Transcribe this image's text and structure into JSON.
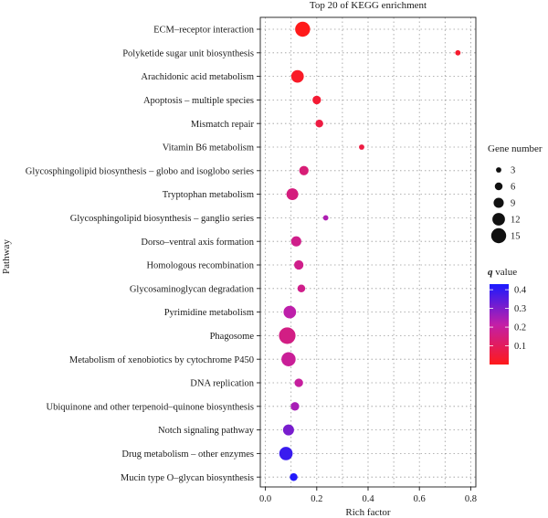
{
  "chart_data": {
    "type": "scatter",
    "title": "Top 20 of KEGG enrichment",
    "xlabel": "Rich factor",
    "ylabel": "Pathway",
    "xlim": [
      -0.02,
      0.82
    ],
    "xticks": [
      "0.0",
      "0.2",
      "0.4",
      "0.6",
      "0.8"
    ],
    "grid": true,
    "points": [
      {
        "pathway": "ECM–receptor interaction",
        "rich_factor": 0.145,
        "gene_number": 15,
        "q_value": 0.0
      },
      {
        "pathway": "Polyketide sugar unit biosynthesis",
        "rich_factor": 0.75,
        "gene_number": 3,
        "q_value": 0.03
      },
      {
        "pathway": "Arachidonic acid metabolism",
        "rich_factor": 0.125,
        "gene_number": 12,
        "q_value": 0.02
      },
      {
        "pathway": "Apoptosis – multiple species",
        "rich_factor": 0.2,
        "gene_number": 7,
        "q_value": 0.04
      },
      {
        "pathway": "Mismatch repair",
        "rich_factor": 0.21,
        "gene_number": 6,
        "q_value": 0.06
      },
      {
        "pathway": "Vitamin B6 metabolism",
        "rich_factor": 0.375,
        "gene_number": 3,
        "q_value": 0.06
      },
      {
        "pathway": "Glycosphingolipid biosynthesis – globo and isoglobo series",
        "rich_factor": 0.15,
        "gene_number": 8,
        "q_value": 0.14
      },
      {
        "pathway": "Tryptophan metabolism",
        "rich_factor": 0.105,
        "gene_number": 11,
        "q_value": 0.15
      },
      {
        "pathway": "Glycosphingolipid biosynthesis – ganglio series",
        "rich_factor": 0.235,
        "gene_number": 3,
        "q_value": 0.24
      },
      {
        "pathway": "Dorso–ventral axis formation",
        "rich_factor": 0.12,
        "gene_number": 9,
        "q_value": 0.17
      },
      {
        "pathway": "Homologous recombination",
        "rich_factor": 0.13,
        "gene_number": 8,
        "q_value": 0.17
      },
      {
        "pathway": "Glycosaminoglycan degradation",
        "rich_factor": 0.14,
        "gene_number": 6,
        "q_value": 0.17
      },
      {
        "pathway": "Pyrimidine metabolism",
        "rich_factor": 0.095,
        "gene_number": 12,
        "q_value": 0.22
      },
      {
        "pathway": "Phagosome",
        "rich_factor": 0.085,
        "gene_number": 17,
        "q_value": 0.16
      },
      {
        "pathway": "Metabolism of xenobiotics by cytochrome P450",
        "rich_factor": 0.09,
        "gene_number": 14,
        "q_value": 0.19
      },
      {
        "pathway": "DNA replication",
        "rich_factor": 0.13,
        "gene_number": 7,
        "q_value": 0.2
      },
      {
        "pathway": "Ubiquinone and other terpenoid–quinone biosynthesis",
        "rich_factor": 0.115,
        "gene_number": 7,
        "q_value": 0.25
      },
      {
        "pathway": "Notch signaling pathway",
        "rich_factor": 0.09,
        "gene_number": 10,
        "q_value": 0.31
      },
      {
        "pathway": "Drug metabolism – other enzymes",
        "rich_factor": 0.08,
        "gene_number": 13,
        "q_value": 0.39
      },
      {
        "pathway": "Mucin type O–glycan biosynthesis",
        "rich_factor": 0.11,
        "gene_number": 6,
        "q_value": 0.42
      }
    ],
    "size_legend": {
      "title": "Gene number",
      "values": [
        "3",
        "6",
        "9",
        "12",
        "15"
      ]
    },
    "color_legend": {
      "title_italic": "q",
      "title_rest": " value",
      "min": 0.0,
      "max": 0.43,
      "ticks": [
        "0.4",
        "0.3",
        "0.2",
        "0.1"
      ],
      "colors": {
        "low": "#ff1a1a",
        "mid": "#c21fa8",
        "high": "#1a1aff"
      }
    }
  }
}
